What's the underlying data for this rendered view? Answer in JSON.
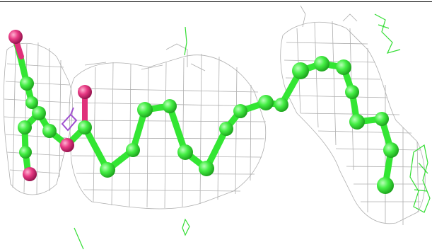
{
  "colors": {
    "background": "#ffffff",
    "top_rule": "#000000",
    "mesh": "#9e9e9e",
    "mesh_soft": "#c8c8c8",
    "carbon_green": "#33e633",
    "carbon_green_dark": "#1aa81a",
    "oxygen_pink": "#e0307a",
    "oxygen_pink_dark": "#9d1150",
    "linker_violet": "#a050d0",
    "green_density": "#33dd33"
  },
  "scene": {
    "subject": "molecular-ligand-chain",
    "render_style": "ball-and-stick-with-electron-density-mesh"
  }
}
